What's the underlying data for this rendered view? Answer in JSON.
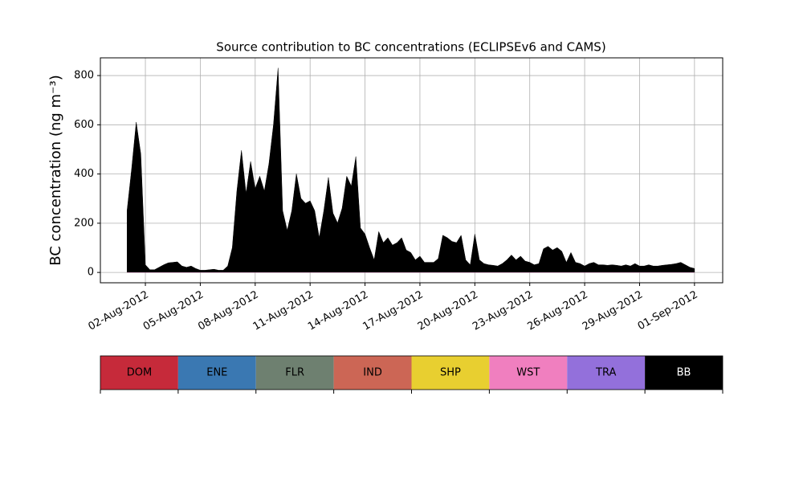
{
  "chart_data": {
    "type": "stacked_area",
    "title": "Source contribution to BC concentrations (ECLIPSEv6 and CAMS)",
    "y_label": "BC concentration (ng m⁻³)",
    "x": [
      "2012-08-01 00:00",
      "2012-08-01 06:00",
      "2012-08-01 12:00",
      "2012-08-01 18:00",
      "2012-08-02 00:00",
      "2012-08-02 06:00",
      "2012-08-02 12:00",
      "2012-08-02 18:00",
      "2012-08-03 00:00",
      "2012-08-03 06:00",
      "2012-08-03 12:00",
      "2012-08-03 18:00",
      "2012-08-04 00:00",
      "2012-08-04 06:00",
      "2012-08-04 12:00",
      "2012-08-04 18:00",
      "2012-08-05 00:00",
      "2012-08-05 06:00",
      "2012-08-05 12:00",
      "2012-08-05 18:00",
      "2012-08-06 00:00",
      "2012-08-06 06:00",
      "2012-08-06 12:00",
      "2012-08-06 18:00",
      "2012-08-07 00:00",
      "2012-08-07 06:00",
      "2012-08-07 12:00",
      "2012-08-07 18:00",
      "2012-08-08 00:00",
      "2012-08-08 06:00",
      "2012-08-08 12:00",
      "2012-08-08 18:00",
      "2012-08-09 00:00",
      "2012-08-09 06:00",
      "2012-08-09 12:00",
      "2012-08-09 18:00",
      "2012-08-10 00:00",
      "2012-08-10 06:00",
      "2012-08-10 12:00",
      "2012-08-10 18:00",
      "2012-08-11 00:00",
      "2012-08-11 06:00",
      "2012-08-11 12:00",
      "2012-08-11 18:00",
      "2012-08-12 00:00",
      "2012-08-12 06:00",
      "2012-08-12 12:00",
      "2012-08-12 18:00",
      "2012-08-13 00:00",
      "2012-08-13 06:00",
      "2012-08-13 12:00",
      "2012-08-13 18:00",
      "2012-08-14 00:00",
      "2012-08-14 06:00",
      "2012-08-14 12:00",
      "2012-08-14 18:00",
      "2012-08-15 00:00",
      "2012-08-15 06:00",
      "2012-08-15 12:00",
      "2012-08-15 18:00",
      "2012-08-16 00:00",
      "2012-08-16 06:00",
      "2012-08-16 12:00",
      "2012-08-16 18:00",
      "2012-08-17 00:00",
      "2012-08-17 06:00",
      "2012-08-17 12:00",
      "2012-08-17 18:00",
      "2012-08-18 00:00",
      "2012-08-18 06:00",
      "2012-08-18 12:00",
      "2012-08-18 18:00",
      "2012-08-19 00:00",
      "2012-08-19 06:00",
      "2012-08-19 12:00",
      "2012-08-19 18:00",
      "2012-08-20 00:00",
      "2012-08-20 06:00",
      "2012-08-20 12:00",
      "2012-08-20 18:00",
      "2012-08-21 00:00",
      "2012-08-21 06:00",
      "2012-08-21 12:00",
      "2012-08-21 18:00",
      "2012-08-22 00:00",
      "2012-08-22 06:00",
      "2012-08-22 12:00",
      "2012-08-22 18:00",
      "2012-08-23 00:00",
      "2012-08-23 06:00",
      "2012-08-23 12:00",
      "2012-08-23 18:00",
      "2012-08-24 00:00",
      "2012-08-24 06:00",
      "2012-08-24 12:00",
      "2012-08-24 18:00",
      "2012-08-25 00:00",
      "2012-08-25 06:00",
      "2012-08-25 12:00",
      "2012-08-25 18:00",
      "2012-08-26 00:00",
      "2012-08-26 06:00",
      "2012-08-26 12:00",
      "2012-08-26 18:00",
      "2012-08-27 00:00",
      "2012-08-27 06:00",
      "2012-08-27 12:00",
      "2012-08-27 18:00",
      "2012-08-28 00:00",
      "2012-08-28 06:00",
      "2012-08-28 12:00",
      "2012-08-28 18:00",
      "2012-08-29 00:00",
      "2012-08-29 06:00",
      "2012-08-29 12:00",
      "2012-08-29 18:00",
      "2012-08-30 00:00",
      "2012-08-30 06:00",
      "2012-08-30 12:00",
      "2012-08-30 18:00",
      "2012-08-31 00:00",
      "2012-08-31 06:00",
      "2012-08-31 12:00",
      "2012-08-31 18:00",
      "2012-09-01 00:00"
    ],
    "series": [
      {
        "name": "DOM",
        "color": "#c62a3a",
        "values": [
          0,
          0,
          0,
          0,
          0,
          0,
          0,
          0,
          0,
          0,
          0,
          0,
          0,
          0,
          0,
          0,
          0,
          0,
          0,
          0,
          0,
          0,
          0,
          0,
          0,
          0,
          0,
          0,
          0,
          0,
          0,
          0,
          0,
          0,
          0,
          0,
          0,
          0,
          0,
          0,
          0,
          0,
          0,
          0,
          0,
          0,
          0,
          0,
          0,
          0,
          0,
          0,
          0,
          0,
          0,
          0,
          0,
          0,
          0,
          0,
          0,
          0,
          0,
          0,
          0,
          0,
          0,
          0,
          0,
          0,
          0,
          0,
          0,
          0,
          0,
          0,
          0,
          0,
          0,
          0,
          0,
          0,
          0,
          0,
          0,
          0,
          0,
          0,
          0,
          0,
          0,
          0,
          0,
          0,
          0,
          0,
          0,
          0,
          0,
          0,
          0,
          0,
          0,
          0,
          0,
          0,
          0,
          0,
          0,
          0,
          0,
          0,
          0,
          0,
          0,
          0,
          0,
          0,
          0,
          0,
          0,
          0,
          0,
          0,
          0
        ]
      },
      {
        "name": "ENE",
        "color": "#3a78b2",
        "values": [
          0,
          0,
          0,
          0,
          0,
          0,
          0,
          0,
          0,
          0,
          0,
          0,
          0,
          0,
          0,
          0,
          0,
          0,
          0,
          0,
          0,
          0,
          0,
          0,
          0,
          0,
          0,
          0,
          0,
          0,
          0,
          0,
          0,
          0,
          0,
          0,
          0,
          0,
          0,
          0,
          0,
          0,
          0,
          0,
          0,
          0,
          0,
          0,
          0,
          0,
          0,
          0,
          0,
          0,
          0,
          0,
          0,
          0,
          0,
          0,
          0,
          0,
          0,
          0,
          0,
          0,
          0,
          0,
          0,
          0,
          0,
          0,
          0,
          0,
          0,
          0,
          0,
          0,
          0,
          0,
          0,
          0,
          0,
          0,
          0,
          0,
          0,
          0,
          0,
          0,
          0,
          0,
          0,
          0,
          0,
          0,
          0,
          0,
          0,
          0,
          0,
          0,
          0,
          0,
          0,
          0,
          0,
          0,
          0,
          0,
          0,
          0,
          0,
          0,
          0,
          0,
          0,
          0,
          0,
          0,
          0,
          0,
          0,
          0,
          0
        ]
      },
      {
        "name": "FLR",
        "color": "#6e8070",
        "values": [
          0,
          0,
          0,
          0,
          0,
          0,
          0,
          0,
          0,
          0,
          0,
          0,
          0,
          0,
          0,
          0,
          0,
          0,
          0,
          0,
          0,
          0,
          0,
          0,
          0,
          0,
          0,
          0,
          0,
          0,
          0,
          0,
          0,
          0,
          0,
          0,
          0,
          0,
          0,
          0,
          0,
          0,
          0,
          0,
          0,
          0,
          0,
          0,
          0,
          0,
          0,
          0,
          0,
          0,
          0,
          0,
          0,
          0,
          0,
          0,
          0,
          0,
          0,
          0,
          0,
          0,
          0,
          0,
          0,
          0,
          0,
          0,
          0,
          0,
          0,
          0,
          0,
          0,
          0,
          0,
          0,
          0,
          0,
          0,
          0,
          0,
          0,
          0,
          0,
          0,
          0,
          0,
          0,
          0,
          0,
          0,
          0,
          0,
          0,
          0,
          0,
          0,
          0,
          0,
          0,
          0,
          0,
          0,
          0,
          0,
          0,
          0,
          0,
          0,
          0,
          0,
          0,
          0,
          0,
          0,
          0,
          0,
          0,
          0,
          0
        ]
      },
      {
        "name": "IND",
        "color": "#cc6655",
        "values": [
          0,
          0,
          0,
          0,
          0,
          0,
          0,
          0,
          0,
          0,
          0,
          0,
          0,
          0,
          0,
          0,
          0,
          0,
          0,
          0,
          0,
          0,
          0,
          0,
          0,
          0,
          0,
          0,
          0,
          0,
          0,
          0,
          0,
          0,
          0,
          0,
          0,
          0,
          0,
          0,
          0,
          0,
          0,
          0,
          0,
          0,
          0,
          0,
          0,
          0,
          0,
          0,
          0,
          0,
          0,
          0,
          0,
          0,
          0,
          0,
          0,
          0,
          0,
          0,
          0,
          0,
          0,
          0,
          0,
          0,
          0,
          0,
          0,
          0,
          0,
          0,
          0,
          0,
          0,
          0,
          0,
          0,
          0,
          0,
          0,
          0,
          0,
          0,
          0,
          0,
          0,
          0,
          0,
          0,
          0,
          0,
          0,
          0,
          0,
          0,
          0,
          0,
          0,
          0,
          0,
          0,
          0,
          0,
          0,
          0,
          0,
          0,
          0,
          0,
          0,
          0,
          0,
          0,
          0,
          0,
          0,
          0,
          0,
          0,
          0
        ]
      },
      {
        "name": "SHP",
        "color": "#e8cf30",
        "values": [
          0,
          0,
          0,
          0,
          0,
          0,
          0,
          0,
          0,
          0,
          0,
          0,
          0,
          0,
          0,
          0,
          0,
          0,
          0,
          0,
          0,
          0,
          0,
          0,
          0,
          0,
          0,
          0,
          0,
          0,
          0,
          0,
          0,
          0,
          0,
          0,
          0,
          0,
          0,
          0,
          0,
          0,
          0,
          0,
          0,
          0,
          0,
          0,
          0,
          0,
          0,
          0,
          0,
          0,
          0,
          0,
          0,
          0,
          0,
          0,
          0,
          0,
          0,
          0,
          0,
          0,
          0,
          0,
          0,
          0,
          0,
          0,
          0,
          0,
          0,
          0,
          0,
          0,
          0,
          0,
          0,
          0,
          0,
          0,
          0,
          0,
          0,
          0,
          0,
          0,
          0,
          0,
          0,
          0,
          0,
          0,
          0,
          0,
          0,
          0,
          0,
          0,
          0,
          0,
          0,
          0,
          0,
          0,
          0,
          0,
          0,
          0,
          0,
          0,
          0,
          0,
          0,
          0,
          0,
          0,
          0,
          0,
          0,
          0,
          0
        ]
      },
      {
        "name": "WST",
        "color": "#f07fbf",
        "values": [
          1,
          1,
          1,
          1,
          1,
          1,
          1,
          1,
          1,
          1,
          1,
          1,
          1,
          1,
          1,
          1,
          1,
          1,
          1,
          1,
          1,
          1,
          1,
          1,
          1,
          1,
          1,
          1,
          1,
          1,
          1,
          1,
          1,
          1,
          1,
          1,
          1,
          1,
          1,
          1,
          1,
          1,
          1,
          1,
          1,
          1,
          1,
          1,
          1,
          1,
          1,
          1,
          1,
          1,
          1,
          1,
          1,
          1,
          1,
          1,
          1,
          1,
          1,
          1,
          1,
          1,
          1,
          1,
          1,
          1,
          1,
          1,
          1,
          1,
          1,
          1,
          1,
          1,
          1,
          1,
          1,
          1,
          1,
          1,
          1,
          1,
          1,
          1,
          1,
          1,
          1,
          1,
          1,
          1,
          1,
          1,
          1,
          1,
          1,
          1,
          1,
          1,
          1,
          1,
          1,
          1,
          1,
          1,
          1,
          1,
          1,
          1,
          1,
          1,
          1,
          1,
          1,
          1,
          1,
          1,
          1,
          1,
          1,
          1,
          1
        ]
      },
      {
        "name": "TRA",
        "color": "#9370db",
        "values": [
          0,
          0,
          0,
          0,
          0,
          0,
          0,
          0,
          0,
          0,
          0,
          0,
          0,
          0,
          0,
          0,
          0,
          0,
          0,
          0,
          0,
          0,
          0,
          0,
          0,
          0,
          0,
          0,
          0,
          0,
          0,
          0,
          0,
          0,
          0,
          0,
          0,
          0,
          0,
          0,
          0,
          0,
          0,
          0,
          0,
          0,
          0,
          0,
          0,
          0,
          0,
          0,
          0,
          0,
          0,
          0,
          0,
          0,
          0,
          0,
          0,
          0,
          0,
          0,
          0,
          0,
          0,
          0,
          0,
          0,
          0,
          0,
          0,
          0,
          0,
          0,
          0,
          0,
          0,
          0,
          0,
          0,
          0,
          0,
          0,
          0,
          0,
          0,
          0,
          0,
          0,
          0,
          0,
          0,
          0,
          0,
          0,
          0,
          0,
          0,
          0,
          0,
          0,
          0,
          0,
          0,
          0,
          0,
          0,
          0,
          0,
          0,
          0,
          0,
          0,
          0,
          0,
          0,
          0,
          0,
          0,
          0,
          0,
          0,
          0
        ]
      },
      {
        "name": "BB",
        "color": "#000000",
        "values": [
          250,
          420,
          610,
          480,
          30,
          10,
          10,
          20,
          30,
          38,
          40,
          42,
          25,
          20,
          25,
          15,
          8,
          8,
          10,
          12,
          8,
          8,
          25,
          100,
          330,
          495,
          320,
          450,
          340,
          390,
          330,
          440,
          600,
          830,
          250,
          170,
          250,
          400,
          300,
          280,
          290,
          250,
          140,
          250,
          385,
          240,
          200,
          260,
          390,
          350,
          470,
          180,
          155,
          100,
          50,
          165,
          120,
          140,
          110,
          120,
          140,
          90,
          80,
          50,
          65,
          40,
          40,
          40,
          55,
          150,
          140,
          125,
          120,
          150,
          50,
          30,
          155,
          50,
          35,
          30,
          28,
          25,
          35,
          50,
          70,
          50,
          65,
          45,
          40,
          30,
          35,
          95,
          105,
          90,
          100,
          85,
          40,
          80,
          40,
          35,
          25,
          35,
          40,
          30,
          30,
          28,
          30,
          28,
          25,
          30,
          25,
          35,
          25,
          25,
          30,
          25,
          25,
          28,
          30,
          32,
          35,
          40,
          30,
          20,
          15
        ]
      }
    ],
    "xlim": [
      "2012-07-30 13:00",
      "2012-09-02 13:00"
    ],
    "xticks": [
      {
        "value": "2012-08-02 00:00",
        "label": "02-Aug-2012"
      },
      {
        "value": "2012-08-05 00:00",
        "label": "05-Aug-2012"
      },
      {
        "value": "2012-08-08 00:00",
        "label": "08-Aug-2012"
      },
      {
        "value": "2012-08-11 00:00",
        "label": "11-Aug-2012"
      },
      {
        "value": "2012-08-14 00:00",
        "label": "14-Aug-2012"
      },
      {
        "value": "2012-08-17 00:00",
        "label": "17-Aug-2012"
      },
      {
        "value": "2012-08-20 00:00",
        "label": "20-Aug-2012"
      },
      {
        "value": "2012-08-23 00:00",
        "label": "23-Aug-2012"
      },
      {
        "value": "2012-08-26 00:00",
        "label": "26-Aug-2012"
      },
      {
        "value": "2012-08-29 00:00",
        "label": "29-Aug-2012"
      },
      {
        "value": "2012-09-01 00:00",
        "label": "01-Sep-2012"
      }
    ],
    "ylim": [
      -42,
      872
    ],
    "yticks": [
      0,
      200,
      400,
      600,
      800
    ],
    "grid": true
  }
}
